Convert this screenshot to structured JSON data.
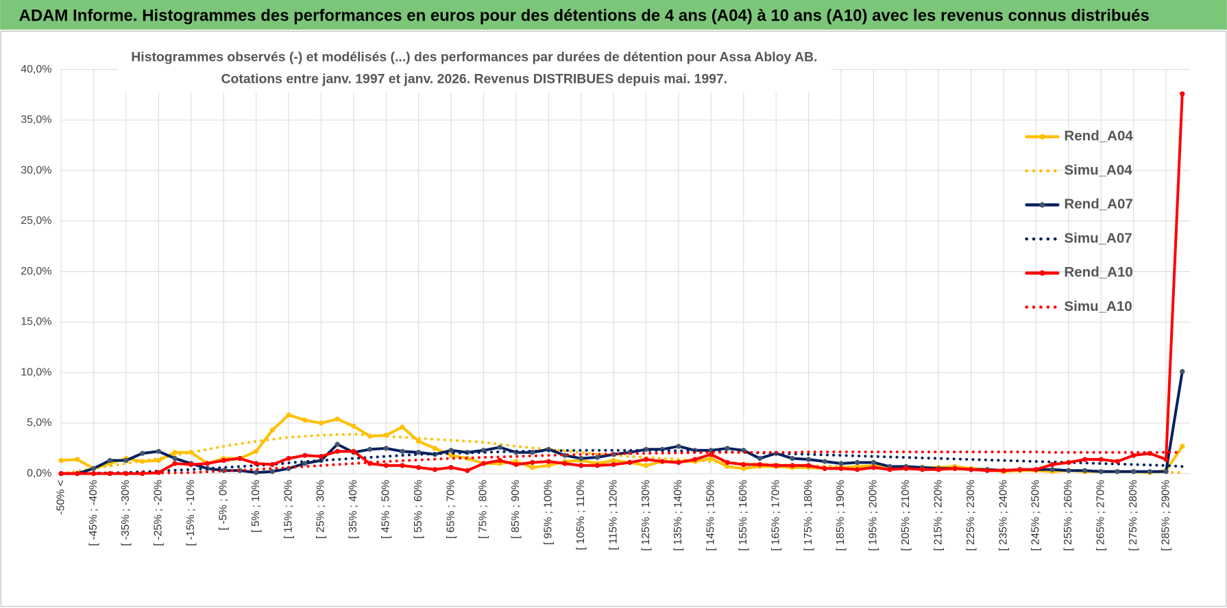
{
  "page_title": "ADAM Informe. Histogrammes des performances en euros pour des détentions de 4 ans (A04) à 10 ans (A10) avec les revenus connus distribués",
  "chart_data": {
    "type": "line",
    "title": "Histogrammes observés (-) et modélisés (...) des performances par durées de détention pour Assa Abloy AB.",
    "subtitle": "Cotations entre janv. 1997 et janv. 2026. Revenus DISTRIBUES depuis mai. 1997.",
    "categories": [
      "-50% <",
      null,
      "[ -45% ; -40%",
      null,
      "[ -35% ; -30%",
      null,
      "[ -25% ; -20%",
      null,
      "[ -15% ; -10%",
      null,
      "[ -5% ; 0%",
      null,
      "[ 5% ; 10%",
      null,
      "[ 15% ; 20%",
      null,
      "[ 25% ; 30%",
      null,
      "[ 35% ; 40%",
      null,
      "[ 45% ; 50%",
      null,
      "[ 55% ; 60%",
      null,
      "[ 65% ; 70%",
      null,
      "[ 75% ; 80%",
      null,
      "[ 85% ; 90%",
      null,
      "[ 95% ; 100%",
      null,
      "[ 105% ; 110%",
      null,
      "[ 115% ; 120%",
      null,
      "[ 125% ; 130%",
      null,
      "[ 135% ; 140%",
      null,
      "[ 145% ; 150%",
      null,
      "[ 155% ; 160%",
      null,
      "[ 165% ; 170%",
      null,
      "[ 175% ; 180%",
      null,
      "[ 185% ; 190%",
      null,
      "[ 195% ; 200%",
      null,
      "[ 205% ; 210%",
      null,
      "[ 215% ; 220%",
      null,
      "[ 225% ; 230%",
      null,
      "[ 235% ; 240%",
      null,
      "[ 245% ; 250%",
      null,
      "[ 255% ; 260%",
      null,
      "[ 265% ; 270%",
      null,
      "[ 275% ; 280%",
      null,
      "[ 285% ; 290%",
      null
    ],
    "series": [
      {
        "name": "Rend_A04",
        "color": "#ffc000",
        "style": "solid",
        "values": [
          1.3,
          1.4,
          0.5,
          1.0,
          1.5,
          1.2,
          1.3,
          2.1,
          2.1,
          1.0,
          1.5,
          1.5,
          2.2,
          4.3,
          5.8,
          5.3,
          5.0,
          5.4,
          4.7,
          3.7,
          3.8,
          4.6,
          3.2,
          2.5,
          1.8,
          1.5,
          1.0,
          1.0,
          1.2,
          0.6,
          0.8,
          1.2,
          1.3,
          1.0,
          1.3,
          1.1,
          0.8,
          1.2,
          1.2,
          1.2,
          1.5,
          0.7,
          0.5,
          0.7,
          0.7,
          0.6,
          0.6,
          0.5,
          0.6,
          0.7,
          0.8,
          0.6,
          0.5,
          0.6,
          0.6,
          0.7,
          0.5,
          0.4,
          0.2,
          0.3,
          0.3,
          0.2,
          0.3,
          0.2,
          0.2,
          0.2,
          0.2,
          0.1,
          0.3,
          2.7
        ]
      },
      {
        "name": "Simu_A04",
        "color": "#ffc000",
        "style": "dotted",
        "values": [
          0,
          0.25,
          0.5,
          0.75,
          1.0,
          1.25,
          1.5,
          1.8,
          2.1,
          2.4,
          2.7,
          2.95,
          3.2,
          3.4,
          3.6,
          3.7,
          3.8,
          3.85,
          3.9,
          3.8,
          3.7,
          3.6,
          3.5,
          3.4,
          3.3,
          3.2,
          3.1,
          2.9,
          2.7,
          2.55,
          2.4,
          2.25,
          2.1,
          1.95,
          1.8,
          1.7,
          1.6,
          1.5,
          1.4,
          1.3,
          1.2,
          1.1,
          1.0,
          0.95,
          0.9,
          0.85,
          0.8,
          0.75,
          0.7,
          0.65,
          0.6,
          0.57,
          0.53,
          0.5,
          0.47,
          0.43,
          0.4,
          0.38,
          0.37,
          0.35,
          0.33,
          0.32,
          0.3,
          0.27,
          0.24,
          0.21,
          0.18,
          0.15,
          0.12,
          0.1
        ]
      },
      {
        "name": "Rend_A07",
        "color": "#002060",
        "style": "solid",
        "values": [
          0,
          0,
          0.5,
          1.3,
          1.3,
          2.0,
          2.2,
          1.5,
          1.0,
          0.5,
          0.3,
          0.3,
          0.1,
          0.2,
          0.5,
          1.0,
          1.3,
          2.9,
          2.1,
          2.4,
          2.5,
          2.2,
          2.1,
          1.9,
          2.3,
          2.1,
          2.3,
          2.6,
          2.1,
          2.1,
          2.4,
          1.8,
          1.5,
          1.6,
          1.9,
          2.1,
          2.4,
          2.4,
          2.7,
          2.3,
          2.3,
          2.5,
          2.3,
          1.5,
          2.0,
          1.5,
          1.4,
          1.2,
          1.0,
          1.1,
          1.1,
          0.7,
          0.7,
          0.6,
          0.5,
          0.5,
          0.4,
          0.4,
          0.3,
          0.4,
          0.4,
          0.4,
          0.3,
          0.3,
          0.2,
          0.2,
          0.2,
          0.2,
          0.2,
          10.1
        ]
      },
      {
        "name": "Simu_A07",
        "color": "#002060",
        "style": "dotted",
        "values": [
          0,
          0,
          0.05,
          0.08,
          0.1,
          0.18,
          0.25,
          0.33,
          0.4,
          0.5,
          0.6,
          0.7,
          0.8,
          0.9,
          1.05,
          1.2,
          1.3,
          1.4,
          1.5,
          1.6,
          1.7,
          1.8,
          1.9,
          1.95,
          2.0,
          2.05,
          2.1,
          2.15,
          2.2,
          2.22,
          2.25,
          2.28,
          2.3,
          2.3,
          2.3,
          2.3,
          2.3,
          2.28,
          2.25,
          2.22,
          2.2,
          2.15,
          2.1,
          2.05,
          2.0,
          1.95,
          1.9,
          1.85,
          1.8,
          1.75,
          1.7,
          1.65,
          1.6,
          1.55,
          1.5,
          1.45,
          1.4,
          1.35,
          1.3,
          1.25,
          1.2,
          1.15,
          1.1,
          1.05,
          1.0,
          0.95,
          0.9,
          0.85,
          0.8,
          0.7
        ]
      },
      {
        "name": "Rend_A10",
        "color": "#ff0000",
        "style": "solid",
        "values": [
          0,
          0,
          0,
          0,
          0,
          0,
          0.1,
          1.0,
          0.9,
          1.0,
          1.3,
          1.5,
          1.0,
          0.9,
          1.5,
          1.8,
          1.7,
          2.2,
          2.2,
          1.0,
          0.8,
          0.8,
          0.6,
          0.4,
          0.6,
          0.3,
          1.0,
          1.3,
          0.9,
          1.1,
          1.2,
          1.0,
          0.8,
          0.8,
          0.9,
          1.1,
          1.4,
          1.2,
          1.1,
          1.4,
          1.9,
          1.1,
          0.9,
          0.9,
          0.8,
          0.8,
          0.8,
          0.5,
          0.5,
          0.4,
          0.6,
          0.4,
          0.5,
          0.4,
          0.4,
          0.5,
          0.4,
          0.3,
          0.3,
          0.4,
          0.4,
          0.9,
          1.1,
          1.4,
          1.4,
          1.2,
          1.8,
          2.0,
          1.4,
          37.6
        ]
      },
      {
        "name": "Simu_A10",
        "color": "#ff0000",
        "style": "dotted",
        "values": [
          0,
          0,
          0,
          0,
          0,
          0,
          0.05,
          0.08,
          0.1,
          0.18,
          0.25,
          0.33,
          0.4,
          0.5,
          0.6,
          0.7,
          0.8,
          0.9,
          1.0,
          1.1,
          1.2,
          1.28,
          1.35,
          1.43,
          1.5,
          1.55,
          1.6,
          1.65,
          1.7,
          1.75,
          1.8,
          1.85,
          1.9,
          1.92,
          1.95,
          1.98,
          2.0,
          2.03,
          2.05,
          2.08,
          2.1,
          2.1,
          2.1,
          2.1,
          2.1,
          2.1,
          2.15,
          2.15,
          2.15,
          2.15,
          2.15,
          2.15,
          2.15,
          2.15,
          2.15,
          2.15,
          2.15,
          2.15,
          2.15,
          2.15,
          2.15,
          2.1,
          2.1,
          2.1,
          2.1,
          2.1,
          2.1,
          2.1,
          2.1,
          2.1
        ]
      }
    ],
    "ylim": [
      0,
      40
    ],
    "yticks": [
      {
        "value": 0,
        "label": "0,0%"
      },
      {
        "value": 5,
        "label": "5,0%"
      },
      {
        "value": 10,
        "label": "10,0%"
      },
      {
        "value": 15,
        "label": "15,0%"
      },
      {
        "value": 20,
        "label": "20,0%"
      },
      {
        "value": 25,
        "label": "25,0%"
      },
      {
        "value": 30,
        "label": "30,0%"
      },
      {
        "value": 35,
        "label": "35,0%"
      },
      {
        "value": 40,
        "label": "40,0%"
      }
    ],
    "grid": true
  }
}
